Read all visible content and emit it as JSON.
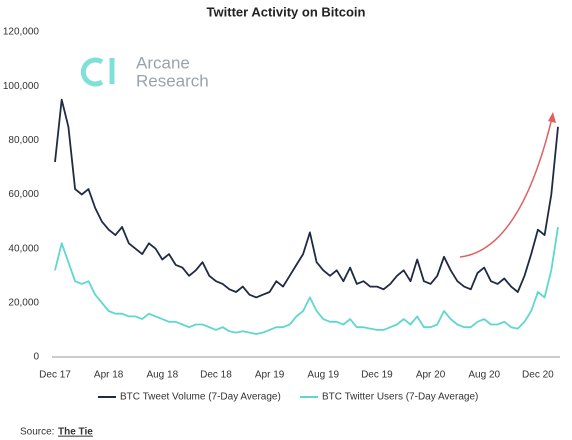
{
  "chart_data": {
    "type": "line",
    "title": "Twitter Activity on Bitcoin",
    "watermark": [
      "Arcane",
      "Research"
    ],
    "source_label": "Source:",
    "source": "The Tie",
    "categories": [
      "Dec 17",
      null,
      null,
      null,
      null,
      null,
      null,
      null,
      "Apr 18",
      null,
      null,
      null,
      null,
      null,
      null,
      null,
      "Aug 18",
      null,
      null,
      null,
      null,
      null,
      null,
      null,
      "Dec 18",
      null,
      null,
      null,
      null,
      null,
      null,
      null,
      "Apr 19",
      null,
      null,
      null,
      null,
      null,
      null,
      null,
      "Aug 19",
      null,
      null,
      null,
      null,
      null,
      null,
      null,
      "Dec 19",
      null,
      null,
      null,
      null,
      null,
      null,
      null,
      "Apr 20",
      null,
      null,
      null,
      null,
      null,
      null,
      null,
      "Aug 20",
      null,
      null,
      null,
      null,
      null,
      null,
      null,
      "Dec 20",
      null,
      null,
      null
    ],
    "series": [
      {
        "name": "BTC Tweet Volume (7-Day Average)",
        "color": "#1f2a44",
        "values": [
          72000,
          95000,
          85000,
          62000,
          60000,
          62000,
          55000,
          50000,
          47000,
          45000,
          48000,
          42000,
          40000,
          38000,
          42000,
          40000,
          36000,
          38000,
          34000,
          33000,
          30000,
          32000,
          35000,
          30000,
          28000,
          27000,
          25000,
          24000,
          26000,
          23000,
          22000,
          23000,
          24000,
          28000,
          26000,
          30000,
          34000,
          38000,
          46000,
          35000,
          32000,
          30000,
          32000,
          28000,
          33000,
          27000,
          28000,
          26000,
          26000,
          25000,
          27000,
          30000,
          32000,
          28000,
          36000,
          28000,
          27000,
          30000,
          37000,
          32000,
          28000,
          26000,
          25000,
          31000,
          33000,
          28000,
          27000,
          29000,
          26000,
          24000,
          30000,
          38000,
          47000,
          45000,
          60000,
          85000
        ]
      },
      {
        "name": "BTC Twitter Users (7-Day Average)",
        "color": "#5fd6cf",
        "values": [
          32000,
          42000,
          35000,
          28000,
          27000,
          28000,
          23000,
          20000,
          17000,
          16000,
          16000,
          15000,
          15000,
          14000,
          16000,
          15000,
          14000,
          13000,
          13000,
          12000,
          11000,
          12000,
          12000,
          11000,
          10000,
          11000,
          9500,
          9000,
          9500,
          9000,
          8500,
          9000,
          10000,
          11000,
          11000,
          12000,
          15000,
          17000,
          22000,
          17000,
          14000,
          13000,
          13000,
          12000,
          14000,
          11000,
          11000,
          10500,
          10000,
          10000,
          11000,
          12000,
          14000,
          12000,
          15000,
          11000,
          11000,
          12000,
          17000,
          14000,
          12000,
          11000,
          11000,
          13000,
          14000,
          12000,
          12000,
          13000,
          11000,
          10500,
          13000,
          17000,
          24000,
          22000,
          32000,
          48000
        ]
      }
    ],
    "ylim": [
      0,
      120000
    ],
    "yticks": [
      0,
      {
        "value": 20000,
        "label": "20,000"
      },
      {
        "value": 40000,
        "label": "40,000"
      },
      {
        "value": 60000,
        "label": "60,000"
      },
      {
        "value": 80000,
        "label": "80,000"
      },
      {
        "value": 100000,
        "label": "100,000"
      },
      {
        "value": 120000,
        "label": "120,000"
      }
    ],
    "grid": false
  }
}
